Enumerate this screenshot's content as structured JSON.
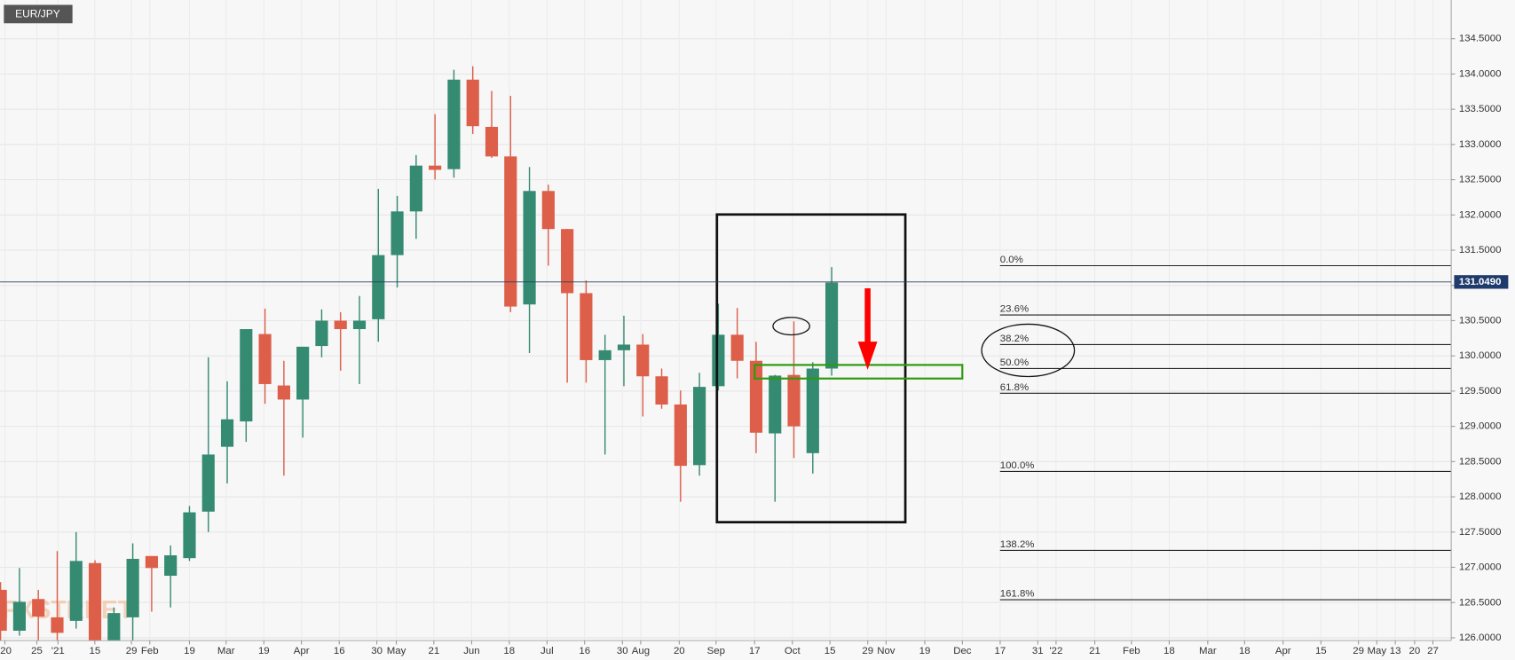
{
  "chart_data": {
    "type": "candlestick",
    "title": "EUR/JPY",
    "watermark": "FXSTREET",
    "x": [
      0,
      1,
      2,
      3,
      4,
      5,
      6,
      7,
      8,
      9,
      10,
      11,
      12,
      13,
      14,
      15,
      16,
      17,
      18,
      19,
      20,
      21,
      22,
      23,
      24,
      25,
      26,
      27,
      28,
      29,
      30,
      31,
      32,
      33,
      34,
      35,
      36,
      37,
      38,
      39,
      40,
      41,
      42,
      43,
      44
    ],
    "open": [
      126.68,
      126.1,
      126.55,
      126.29,
      126.24,
      127.06,
      125.96,
      126.29,
      127.16,
      126.88,
      127.13,
      127.79,
      128.71,
      129.07,
      130.31,
      129.58,
      129.38,
      130.14,
      130.5,
      130.38,
      130.52,
      131.43,
      132.05,
      132.7,
      132.65,
      133.92,
      133.25,
      132.83,
      130.73,
      132.34,
      131.8,
      130.89,
      129.94,
      130.08,
      130.16,
      129.71,
      129.31,
      128.45,
      129.57,
      130.3,
      129.93,
      128.9,
      129.73,
      128.62,
      129.82
    ],
    "high": [
      126.79,
      126.99,
      126.68,
      127.23,
      127.5,
      127.1,
      126.43,
      127.34,
      127.16,
      127.31,
      127.87,
      129.98,
      129.64,
      130.38,
      130.67,
      129.93,
      130.13,
      130.66,
      130.62,
      130.85,
      132.37,
      132.27,
      132.85,
      133.43,
      134.06,
      134.11,
      133.76,
      133.69,
      132.68,
      132.43,
      131.8,
      131.07,
      130.3,
      130.57,
      130.31,
      129.82,
      129.51,
      129.76,
      130.74,
      130.68,
      130.2,
      129.73,
      130.49,
      129.91,
      131.26
    ],
    "low": [
      125.96,
      126.03,
      125.96,
      125.96,
      126.13,
      125.96,
      125.96,
      125.96,
      126.37,
      126.43,
      127.09,
      127.5,
      128.19,
      128.78,
      129.32,
      128.3,
      128.84,
      129.98,
      129.79,
      129.6,
      130.2,
      130.97,
      131.66,
      132.5,
      132.53,
      133.15,
      132.81,
      130.62,
      130.04,
      131.28,
      129.62,
      129.62,
      128.6,
      129.57,
      129.14,
      129.25,
      127.93,
      128.3,
      129.51,
      129.68,
      128.62,
      127.93,
      128.55,
      128.33,
      129.72
    ],
    "close": [
      126.1,
      126.51,
      126.3,
      126.07,
      127.09,
      125.96,
      126.35,
      127.12,
      126.99,
      127.17,
      127.78,
      128.6,
      129.1,
      130.38,
      129.6,
      129.38,
      130.13,
      130.5,
      130.38,
      130.5,
      131.43,
      132.05,
      132.7,
      132.64,
      133.92,
      133.26,
      132.83,
      130.7,
      132.34,
      131.8,
      130.89,
      129.94,
      130.08,
      130.16,
      129.71,
      129.31,
      128.44,
      129.56,
      130.3,
      129.93,
      128.91,
      129.72,
      129.0,
      129.82,
      131.04
    ],
    "up_color": "#358a72",
    "down_color": "#dd5e49",
    "last_price": {
      "value": 131.049,
      "label": "131.0490"
    },
    "fibonacci": [
      {
        "level": "0.0%",
        "price": 131.28
      },
      {
        "level": "23.6%",
        "price": 130.58
      },
      {
        "level": "38.2%",
        "price": 130.16
      },
      {
        "level": "50.0%",
        "price": 129.82
      },
      {
        "level": "61.8%",
        "price": 129.47
      },
      {
        "level": "100.0%",
        "price": 128.36
      },
      {
        "level": "138.2%",
        "price": 127.24
      },
      {
        "level": "161.8%",
        "price": 126.54
      }
    ],
    "ylim": [
      125.96,
      135.05
    ],
    "yticks": [
      {
        "value": 126.0,
        "label": "126.0000"
      },
      {
        "value": 126.5,
        "label": "126.5000"
      },
      {
        "value": 127.0,
        "label": "127.0000"
      },
      {
        "value": 127.5,
        "label": "127.5000"
      },
      {
        "value": 128.0,
        "label": "128.0000"
      },
      {
        "value": 128.5,
        "label": "128.5000"
      },
      {
        "value": 129.0,
        "label": "129.0000"
      },
      {
        "value": 129.5,
        "label": "129.5000"
      },
      {
        "value": 130.0,
        "label": "130.0000"
      },
      {
        "value": 130.5,
        "label": "130.5000"
      },
      {
        "value": 131.0,
        "label": "131.0000"
      },
      {
        "value": 131.5,
        "label": "131.5000"
      },
      {
        "value": 132.0,
        "label": "132.0000"
      },
      {
        "value": 132.5,
        "label": "132.5000"
      },
      {
        "value": 133.0,
        "label": "133.0000"
      },
      {
        "value": 133.5,
        "label": "133.5000"
      },
      {
        "value": 134.0,
        "label": "134.0000"
      },
      {
        "value": 134.5,
        "label": "134.5000"
      }
    ],
    "xlim": [
      -0.03,
      76.8
    ],
    "xticks": [
      {
        "value": 0.23,
        "label": "'20"
      },
      {
        "value": 1.92,
        "label": "25"
      },
      {
        "value": 3.04,
        "label": "'21"
      },
      {
        "value": 4.99,
        "label": "15"
      },
      {
        "value": 6.93,
        "label": "29"
      },
      {
        "value": 7.9,
        "label": "Feb"
      },
      {
        "value": 10.0,
        "label": "19"
      },
      {
        "value": 11.94,
        "label": "Mar"
      },
      {
        "value": 13.94,
        "label": "19"
      },
      {
        "value": 15.93,
        "label": "Apr"
      },
      {
        "value": 17.93,
        "label": "16"
      },
      {
        "value": 19.92,
        "label": "30"
      },
      {
        "value": 20.95,
        "label": "May"
      },
      {
        "value": 22.94,
        "label": "21"
      },
      {
        "value": 24.94,
        "label": "Jun"
      },
      {
        "value": 26.93,
        "label": "18"
      },
      {
        "value": 28.93,
        "label": "Jul"
      },
      {
        "value": 30.92,
        "label": "16"
      },
      {
        "value": 32.92,
        "label": "30"
      },
      {
        "value": 33.89,
        "label": "Aug"
      },
      {
        "value": 35.93,
        "label": "20"
      },
      {
        "value": 37.88,
        "label": "Sep"
      },
      {
        "value": 39.92,
        "label": "17"
      },
      {
        "value": 41.92,
        "label": "Oct"
      },
      {
        "value": 43.91,
        "label": "15"
      },
      {
        "value": 45.91,
        "label": "29"
      },
      {
        "value": 46.88,
        "label": "Nov"
      },
      {
        "value": 48.93,
        "label": "19"
      },
      {
        "value": 50.92,
        "label": "Dec"
      },
      {
        "value": 52.92,
        "label": "17"
      },
      {
        "value": 54.91,
        "label": "31"
      },
      {
        "value": 55.88,
        "label": "'22"
      },
      {
        "value": 57.93,
        "label": "21"
      },
      {
        "value": 59.87,
        "label": "Feb"
      },
      {
        "value": 61.87,
        "label": "18"
      },
      {
        "value": 63.91,
        "label": "Mar"
      },
      {
        "value": 65.86,
        "label": "18"
      },
      {
        "value": 67.9,
        "label": "Apr"
      },
      {
        "value": 69.9,
        "label": "15"
      },
      {
        "value": 71.89,
        "label": "29"
      },
      {
        "value": 72.86,
        "label": "May"
      },
      {
        "value": 73.84,
        "label": "13"
      },
      {
        "value": 74.86,
        "label": "20"
      },
      {
        "value": 75.83,
        "label": "27"
      }
    ],
    "grid": true
  }
}
